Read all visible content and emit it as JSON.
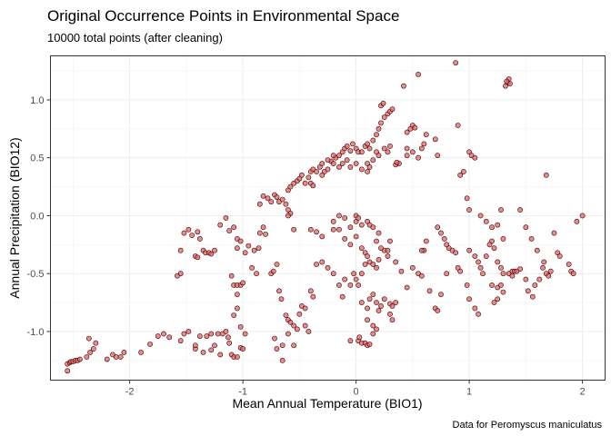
{
  "chart_data": {
    "type": "scatter",
    "title": "Original Occurrence Points in Environmental Space",
    "subtitle": "10000 total points (after cleaning)",
    "xlabel": "Mean Annual Temperature (BIO1)",
    "ylabel": "Annual Precipitation (BIO12)",
    "caption": "Data for Peromyscus maniculatus",
    "xlim": [
      -2.7,
      2.2
    ],
    "ylim": [
      -1.42,
      1.38
    ],
    "x_ticks": [
      -2,
      -1,
      0,
      1,
      2
    ],
    "y_ticks": [
      -1.0,
      -0.5,
      0.0,
      0.5,
      1.0
    ],
    "x_tick_labels": [
      "-2",
      "-1",
      "0",
      "1",
      "2"
    ],
    "y_tick_labels": [
      "-1.0",
      "-0.5",
      "0.0",
      "0.5",
      "1.0"
    ],
    "grid": true,
    "legend": "none",
    "point_fill": "#e06666",
    "point_fill_dense": "#8b0000",
    "points": [
      [
        -2.55,
        -1.28
      ],
      [
        -2.53,
        -1.27
      ],
      [
        -2.52,
        -1.26
      ],
      [
        -2.5,
        -1.26
      ],
      [
        -2.48,
        -1.25
      ],
      [
        -2.46,
        -1.25
      ],
      [
        -2.44,
        -1.24
      ],
      [
        -2.55,
        -1.34
      ],
      [
        -2.38,
        -1.22
      ],
      [
        -2.35,
        -1.18
      ],
      [
        -2.32,
        -1.15
      ],
      [
        -2.36,
        -1.06
      ],
      [
        -2.3,
        -1.1
      ],
      [
        -2.2,
        -1.24
      ],
      [
        -2.15,
        -1.2
      ],
      [
        -2.12,
        -1.22
      ],
      [
        -2.08,
        -1.22
      ],
      [
        -2.05,
        -1.18
      ],
      [
        -1.9,
        -1.18
      ],
      [
        -1.82,
        -1.11
      ],
      [
        -1.75,
        -1.04
      ],
      [
        -1.7,
        -1.02
      ],
      [
        -1.65,
        -1.05
      ],
      [
        -1.55,
        -1.08
      ],
      [
        -1.52,
        -1.02
      ],
      [
        -1.48,
        -1.0
      ],
      [
        -1.42,
        -1.15
      ],
      [
        -1.42,
        -1.12
      ],
      [
        -1.38,
        -1.04
      ],
      [
        -1.32,
        -1.04
      ],
      [
        -1.28,
        -1.02
      ],
      [
        -1.22,
        -1.02
      ],
      [
        -1.18,
        -1.02
      ],
      [
        -1.15,
        -1.0
      ],
      [
        -1.13,
        -1.05
      ],
      [
        -1.12,
        -1.1
      ],
      [
        -1.1,
        -1.2
      ],
      [
        -1.08,
        -1.22
      ],
      [
        -1.05,
        -1.22
      ],
      [
        -1.02,
        -1.14
      ],
      [
        -1.0,
        -1.15
      ],
      [
        -1.25,
        -1.12
      ],
      [
        -1.28,
        -1.16
      ],
      [
        -1.2,
        -1.2
      ],
      [
        -1.35,
        -1.18
      ],
      [
        -1.58,
        -0.52
      ],
      [
        -1.55,
        -0.5
      ],
      [
        -1.55,
        -0.3
      ],
      [
        -1.52,
        -0.15
      ],
      [
        -1.48,
        -0.12
      ],
      [
        -1.45,
        -0.17
      ],
      [
        -1.42,
        -0.35
      ],
      [
        -1.4,
        -0.36
      ],
      [
        -1.38,
        -0.2
      ],
      [
        -1.35,
        -0.3
      ],
      [
        -1.33,
        -0.32
      ],
      [
        -1.3,
        -0.32
      ],
      [
        -1.28,
        -0.33
      ],
      [
        -1.25,
        -0.3
      ],
      [
        -1.4,
        -0.14
      ],
      [
        -1.2,
        -0.08
      ],
      [
        -1.15,
        -0.02
      ],
      [
        -1.12,
        -0.13
      ],
      [
        -1.08,
        -0.1
      ],
      [
        -1.05,
        -0.2
      ],
      [
        -1.05,
        -0.28
      ],
      [
        -1.02,
        -0.22
      ],
      [
        -0.98,
        -0.32
      ],
      [
        -0.95,
        -0.26
      ],
      [
        -1.1,
        -0.52
      ],
      [
        -1.08,
        -0.6
      ],
      [
        -1.05,
        -0.6
      ],
      [
        -1.02,
        -0.6
      ],
      [
        -1.0,
        -0.58
      ],
      [
        -1.05,
        -0.68
      ],
      [
        -1.05,
        -0.8
      ],
      [
        -1.08,
        -0.86
      ],
      [
        -1.02,
        -0.96
      ],
      [
        -0.98,
        -1.02
      ],
      [
        -0.92,
        -0.45
      ],
      [
        -0.88,
        -0.5
      ],
      [
        -0.9,
        -0.3
      ],
      [
        -0.86,
        -0.28
      ],
      [
        -0.8,
        -0.16
      ],
      [
        -0.78,
        0.15
      ],
      [
        -0.75,
        0.12
      ],
      [
        -0.72,
        0.18
      ],
      [
        -0.7,
        0.16
      ],
      [
        -0.68,
        0.12
      ],
      [
        -0.65,
        0.14
      ],
      [
        -0.62,
        0.1
      ],
      [
        -0.6,
        0.05
      ],
      [
        -0.58,
        0.02
      ],
      [
        -0.82,
        -0.1
      ],
      [
        -0.85,
        -0.15
      ],
      [
        -0.75,
        -0.5
      ],
      [
        -0.73,
        -0.48
      ],
      [
        -0.7,
        -0.42
      ],
      [
        -0.68,
        -0.65
      ],
      [
        -0.66,
        -0.72
      ],
      [
        -0.62,
        -0.86
      ],
      [
        -0.6,
        -0.9
      ],
      [
        -0.58,
        -0.92
      ],
      [
        -0.55,
        -0.95
      ],
      [
        -0.52,
        -0.98
      ],
      [
        -0.6,
        -1.02
      ],
      [
        -0.65,
        -1.12
      ],
      [
        -0.72,
        -1.06
      ],
      [
        -0.7,
        -1.15
      ],
      [
        -0.65,
        -1.25
      ],
      [
        -0.55,
        -1.12
      ],
      [
        -0.5,
        -0.85
      ],
      [
        -0.48,
        -0.78
      ],
      [
        -0.45,
        -0.8
      ],
      [
        -0.45,
        -0.95
      ],
      [
        -0.42,
        -1.0
      ],
      [
        -0.4,
        -0.65
      ],
      [
        -0.38,
        -0.7
      ],
      [
        -0.85,
        0.1
      ],
      [
        -0.82,
        0.17
      ],
      [
        -0.6,
        0.22
      ],
      [
        -0.58,
        0.25
      ],
      [
        -0.55,
        0.28
      ],
      [
        -0.52,
        0.3
      ],
      [
        -0.5,
        0.32
      ],
      [
        -0.48,
        0.35
      ],
      [
        -0.45,
        0.28
      ],
      [
        -0.42,
        0.33
      ],
      [
        -0.4,
        0.38
      ],
      [
        -0.38,
        0.4
      ],
      [
        -0.35,
        0.38
      ],
      [
        -0.32,
        0.42
      ],
      [
        -0.3,
        0.45
      ],
      [
        -0.28,
        0.38
      ],
      [
        -0.25,
        0.4
      ],
      [
        -0.22,
        0.47
      ],
      [
        -0.2,
        0.45
      ],
      [
        -0.18,
        0.5
      ],
      [
        -0.15,
        0.52
      ],
      [
        -0.12,
        0.55
      ],
      [
        -0.1,
        0.58
      ],
      [
        -0.08,
        0.6
      ],
      [
        -0.05,
        0.56
      ],
      [
        -0.03,
        0.62
      ],
      [
        0.0,
        0.58
      ],
      [
        0.02,
        0.55
      ],
      [
        -0.4,
        0.28
      ],
      [
        -0.38,
        0.26
      ],
      [
        -0.3,
        0.35
      ],
      [
        -0.25,
        0.48
      ],
      [
        -0.2,
        0.52
      ],
      [
        -0.15,
        0.42
      ],
      [
        -0.12,
        0.45
      ],
      [
        -0.08,
        0.48
      ],
      [
        -0.05,
        0.42
      ],
      [
        0.0,
        0.45
      ],
      [
        0.05,
        0.55
      ],
      [
        0.08,
        0.6
      ],
      [
        0.1,
        0.62
      ],
      [
        0.12,
        0.58
      ],
      [
        0.15,
        0.65
      ],
      [
        0.18,
        0.7
      ],
      [
        0.2,
        0.75
      ],
      [
        0.22,
        0.8
      ],
      [
        0.25,
        0.85
      ],
      [
        0.28,
        0.88
      ],
      [
        0.3,
        0.9
      ],
      [
        0.32,
        0.92
      ],
      [
        0.22,
        0.95
      ],
      [
        0.24,
        0.97
      ],
      [
        0.18,
        0.55
      ],
      [
        0.2,
        0.52
      ],
      [
        0.15,
        0.48
      ],
      [
        0.1,
        0.45
      ],
      [
        0.05,
        0.4
      ],
      [
        0.1,
        0.38
      ],
      [
        0.12,
        0.42
      ],
      [
        0.35,
        0.44
      ],
      [
        0.38,
        0.45
      ],
      [
        0.36,
        0.46
      ],
      [
        0.25,
        0.58
      ],
      [
        0.28,
        0.55
      ],
      [
        0.3,
        0.6
      ],
      [
        0.45,
        0.72
      ],
      [
        0.48,
        0.75
      ],
      [
        0.5,
        0.78
      ],
      [
        0.52,
        0.76
      ],
      [
        0.45,
        0.52
      ],
      [
        0.5,
        0.55
      ],
      [
        0.55,
        0.5
      ],
      [
        0.58,
        0.58
      ],
      [
        0.6,
        0.62
      ],
      [
        0.62,
        0.7
      ],
      [
        0.45,
        0.58
      ],
      [
        0.42,
        1.12
      ],
      [
        0.55,
        1.22
      ],
      [
        0.88,
        1.32
      ],
      [
        0.9,
        0.78
      ],
      [
        0.72,
        0.52
      ],
      [
        0.7,
        0.66
      ],
      [
        -0.6,
        0.0
      ],
      [
        -0.55,
        -0.12
      ],
      [
        -0.4,
        -0.12
      ],
      [
        -0.35,
        -0.14
      ],
      [
        -0.3,
        -0.18
      ],
      [
        -0.2,
        -0.12
      ],
      [
        -0.15,
        -0.12
      ],
      [
        -0.05,
        -0.1
      ],
      [
        0.0,
        -0.05
      ],
      [
        0.05,
        -0.08
      ],
      [
        0.1,
        -0.05
      ],
      [
        0.15,
        -0.1
      ],
      [
        0.2,
        -0.15
      ],
      [
        -0.1,
        -0.2
      ],
      [
        -0.05,
        -0.25
      ],
      [
        0.0,
        -0.18
      ],
      [
        0.05,
        -0.28
      ],
      [
        0.08,
        -0.32
      ],
      [
        0.1,
        -0.35
      ],
      [
        0.12,
        -0.4
      ],
      [
        0.15,
        -0.42
      ],
      [
        0.18,
        -0.45
      ],
      [
        0.2,
        -0.38
      ],
      [
        0.25,
        -0.3
      ],
      [
        0.28,
        -0.3
      ],
      [
        0.3,
        -0.22
      ],
      [
        -0.02,
        -0.5
      ],
      [
        0.0,
        -0.55
      ],
      [
        0.02,
        -0.6
      ],
      [
        0.05,
        -0.5
      ],
      [
        0.08,
        -0.42
      ],
      [
        0.0,
        0.0
      ],
      [
        0.02,
        -0.02
      ],
      [
        -0.1,
        -0.02
      ],
      [
        -0.15,
        0.0
      ],
      [
        -0.2,
        -0.05
      ],
      [
        0.12,
        -0.08
      ],
      [
        0.18,
        -0.22
      ],
      [
        0.22,
        -0.28
      ],
      [
        0.28,
        -0.35
      ],
      [
        0.35,
        -0.4
      ],
      [
        0.4,
        -0.48
      ],
      [
        0.45,
        -0.62
      ],
      [
        0.5,
        -0.45
      ],
      [
        0.55,
        -0.5
      ],
      [
        0.58,
        -0.52
      ],
      [
        0.6,
        -0.3
      ],
      [
        0.62,
        -0.22
      ],
      [
        -0.3,
        -0.4
      ],
      [
        -0.35,
        -0.42
      ],
      [
        -0.25,
        -0.45
      ],
      [
        -0.2,
        -0.5
      ],
      [
        -0.15,
        -0.6
      ],
      [
        -0.1,
        -0.55
      ],
      [
        -0.05,
        -0.6
      ],
      [
        -0.12,
        -0.7
      ],
      [
        0.05,
        -0.75
      ],
      [
        0.1,
        -0.8
      ],
      [
        0.12,
        -0.72
      ],
      [
        0.15,
        -0.68
      ],
      [
        0.18,
        -0.75
      ],
      [
        0.2,
        -0.82
      ],
      [
        0.22,
        -0.78
      ],
      [
        0.25,
        -0.72
      ],
      [
        0.3,
        -0.76
      ],
      [
        0.32,
        -0.78
      ],
      [
        0.35,
        -0.75
      ],
      [
        0.1,
        -0.9
      ],
      [
        0.15,
        -0.95
      ],
      [
        0.02,
        -1.08
      ],
      [
        0.05,
        -1.1
      ],
      [
        0.08,
        -1.1
      ],
      [
        0.1,
        -1.12
      ],
      [
        0.12,
        -1.11
      ],
      [
        0.03,
        -1.05
      ],
      [
        -0.05,
        -1.08
      ],
      [
        0.15,
        -1.02
      ],
      [
        0.18,
        -0.98
      ],
      [
        0.3,
        -0.85
      ],
      [
        0.32,
        -0.9
      ],
      [
        0.65,
        -0.65
      ],
      [
        0.7,
        -0.8
      ],
      [
        0.72,
        -0.82
      ],
      [
        0.75,
        -0.68
      ],
      [
        0.8,
        -0.5
      ],
      [
        0.58,
        -0.3
      ],
      [
        0.72,
        -0.1
      ],
      [
        0.75,
        -0.15
      ],
      [
        0.78,
        -0.2
      ],
      [
        0.8,
        -0.25
      ],
      [
        0.82,
        -0.28
      ],
      [
        0.85,
        -0.3
      ],
      [
        0.88,
        -0.32
      ],
      [
        0.9,
        -0.45
      ],
      [
        0.92,
        -0.48
      ],
      [
        0.92,
        0.35
      ],
      [
        0.95,
        0.38
      ],
      [
        0.98,
        0.15
      ],
      [
        1.0,
        0.05
      ],
      [
        1.0,
        0.55
      ],
      [
        1.02,
        0.52
      ],
      [
        1.05,
        0.5
      ],
      [
        0.98,
        -0.6
      ],
      [
        1.0,
        -0.72
      ],
      [
        1.05,
        -0.8
      ],
      [
        1.08,
        -0.85
      ],
      [
        1.0,
        -0.3
      ],
      [
        1.05,
        -0.35
      ],
      [
        1.08,
        -0.4
      ],
      [
        1.1,
        -0.45
      ],
      [
        1.12,
        -0.5
      ],
      [
        1.15,
        -0.35
      ],
      [
        1.18,
        -0.25
      ],
      [
        1.2,
        -0.22
      ],
      [
        1.22,
        -0.28
      ],
      [
        1.25,
        -0.4
      ],
      [
        1.28,
        -0.45
      ],
      [
        1.3,
        -0.5
      ],
      [
        1.1,
        0.0
      ],
      [
        1.15,
        -0.05
      ],
      [
        1.2,
        -0.1
      ],
      [
        1.25,
        -0.08
      ],
      [
        1.28,
        0.05
      ],
      [
        1.3,
        -0.2
      ],
      [
        1.2,
        -0.6
      ],
      [
        1.25,
        -0.62
      ],
      [
        1.28,
        -0.6
      ],
      [
        1.3,
        -0.66
      ],
      [
        1.22,
        -0.75
      ],
      [
        1.25,
        -0.72
      ],
      [
        1.32,
        1.12
      ],
      [
        1.34,
        1.15
      ],
      [
        1.35,
        1.18
      ],
      [
        1.36,
        1.14
      ],
      [
        1.33,
        1.16
      ],
      [
        1.35,
        -0.5
      ],
      [
        1.38,
        -0.48
      ],
      [
        1.4,
        -0.48
      ],
      [
        1.42,
        -0.48
      ],
      [
        1.45,
        -0.46
      ],
      [
        1.38,
        -0.52
      ],
      [
        1.45,
        0.05
      ],
      [
        1.5,
        -0.1
      ],
      [
        1.55,
        -0.2
      ],
      [
        1.6,
        -0.3
      ],
      [
        1.65,
        -0.45
      ],
      [
        1.68,
        -0.5
      ],
      [
        1.7,
        -0.52
      ],
      [
        1.62,
        -0.55
      ],
      [
        1.58,
        -0.6
      ],
      [
        1.66,
        -0.4
      ],
      [
        1.72,
        -0.48
      ],
      [
        1.68,
        0.35
      ],
      [
        1.75,
        -0.15
      ],
      [
        1.78,
        -0.32
      ],
      [
        1.8,
        -0.35
      ],
      [
        1.88,
        -0.42
      ],
      [
        1.9,
        -0.48
      ],
      [
        1.92,
        -0.5
      ],
      [
        1.95,
        -0.05
      ],
      [
        2.0,
        0.0
      ],
      [
        1.5,
        -0.55
      ],
      [
        1.52,
        -0.65
      ],
      [
        1.56,
        -0.7
      ]
    ]
  }
}
